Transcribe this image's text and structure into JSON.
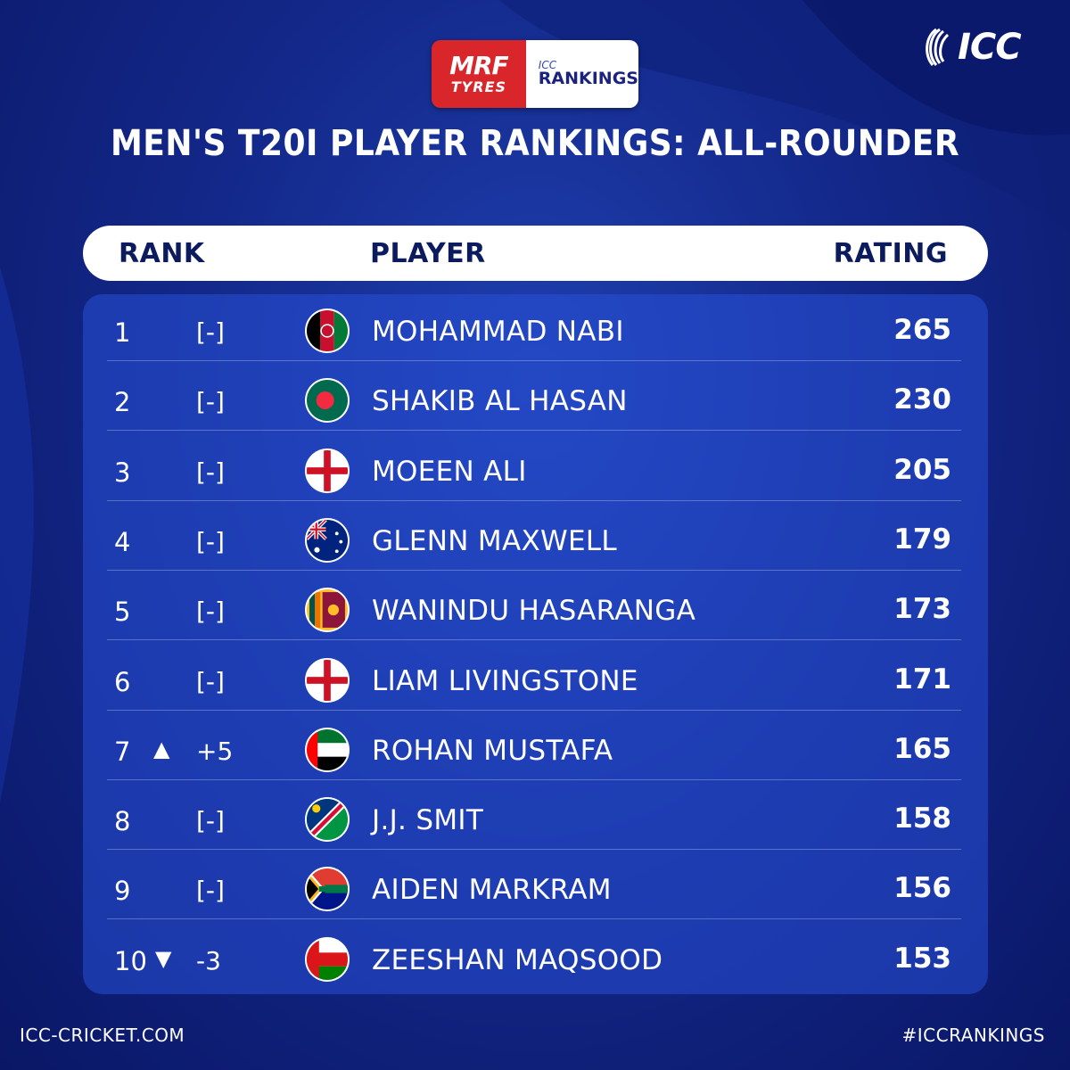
{
  "sponsor": {
    "brand": "MRF",
    "sub": "TYRES",
    "icc_label": "ICC",
    "rankings_label": "RANKINGS"
  },
  "icc_logo_text": "ICC",
  "title": "MEN'S T20I PLAYER RANKINGS: ALL-ROUNDER",
  "header": {
    "rank": "RANK",
    "player": "PLAYER",
    "rating": "RATING"
  },
  "rows": [
    {
      "rank": "1",
      "arrow": "",
      "move": "[-]",
      "flag": "afghanistan-flag",
      "player": "MOHAMMAD NABI",
      "rating": "265"
    },
    {
      "rank": "2",
      "arrow": "",
      "move": "[-]",
      "flag": "bangladesh-flag",
      "player": "SHAKIB AL HASAN",
      "rating": "230"
    },
    {
      "rank": "3",
      "arrow": "",
      "move": "[-]",
      "flag": "england-flag",
      "player": "MOEEN ALI",
      "rating": "205"
    },
    {
      "rank": "4",
      "arrow": "",
      "move": "[-]",
      "flag": "australia-flag",
      "player": "GLENN MAXWELL",
      "rating": "179"
    },
    {
      "rank": "5",
      "arrow": "",
      "move": "[-]",
      "flag": "sri-lanka-flag",
      "player": "WANINDU HASARANGA",
      "rating": "173"
    },
    {
      "rank": "6",
      "arrow": "",
      "move": "[-]",
      "flag": "england-flag",
      "player": "LIAM LIVINGSTONE",
      "rating": "171"
    },
    {
      "rank": "7",
      "arrow": "▲",
      "move": "+5",
      "flag": "uae-flag",
      "player": "ROHAN MUSTAFA",
      "rating": "165"
    },
    {
      "rank": "8",
      "arrow": "",
      "move": "[-]",
      "flag": "namibia-flag",
      "player": "J.J. SMIT",
      "rating": "158"
    },
    {
      "rank": "9",
      "arrow": "",
      "move": "[-]",
      "flag": "south-africa-flag",
      "player": "AIDEN MARKRAM",
      "rating": "156"
    },
    {
      "rank": "10",
      "arrow": "▼",
      "move": "-3",
      "flag": "oman-flag",
      "player": "ZEESHAN MAQSOOD",
      "rating": "153"
    }
  ],
  "footer": {
    "website": "ICC-CRICKET.COM",
    "hashtag": "#ICCRANKINGS"
  },
  "colors": {
    "background": "#13288a",
    "panel": "#2850d7",
    "header_bar": "#ffffff",
    "header_text": "#0c1a5e",
    "mrf_red": "#d8262b"
  }
}
